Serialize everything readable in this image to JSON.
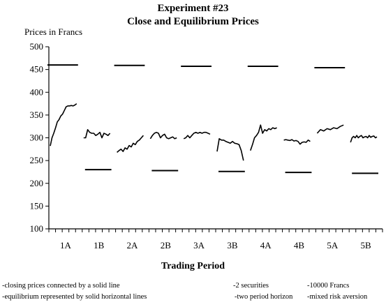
{
  "chart_data": {
    "type": "line",
    "title": "Experiment #23",
    "subtitle": "Close and Equilibrium Prices",
    "ylabel": "Prices in Francs",
    "xlabel": "Trading Period",
    "ylim": [
      100,
      500
    ],
    "yticks": [
      100,
      150,
      200,
      250,
      300,
      350,
      400,
      450,
      500
    ],
    "categories": [
      "1A",
      "1B",
      "2A",
      "2B",
      "3A",
      "3B",
      "4A",
      "4B",
      "5A",
      "5B"
    ],
    "closing_prices": [
      [
        282,
        300,
        310,
        322,
        335,
        340,
        348,
        352,
        360,
        368,
        370,
        370,
        371,
        370,
        372,
        375
      ],
      [
        300,
        300,
        318,
        312,
        310,
        310,
        305,
        308,
        312,
        300,
        310,
        308,
        305,
        310
      ],
      [
        268,
        272,
        275,
        270,
        278,
        275,
        283,
        280,
        288,
        285,
        292,
        295,
        300,
        305
      ],
      [
        298,
        305,
        310,
        312,
        310,
        300,
        305,
        308,
        300,
        298,
        300,
        302,
        298,
        300
      ],
      [
        298,
        300,
        305,
        300,
        305,
        310,
        312,
        310,
        312,
        310,
        312,
        312,
        310,
        308
      ],
      [
        270,
        298,
        295,
        295,
        292,
        290,
        288,
        292,
        288,
        287,
        285,
        272,
        250
      ],
      [
        272,
        285,
        300,
        305,
        312,
        328,
        310,
        318,
        315,
        320,
        318,
        322,
        320,
        322
      ],
      [
        295,
        296,
        295,
        294,
        296,
        293,
        294,
        292,
        286,
        290,
        291,
        290,
        295,
        292
      ],
      [
        310,
        318,
        315,
        320,
        318,
        322,
        320,
        325,
        328
      ],
      [
        290,
        300,
        303,
        300,
        305,
        300,
        303,
        305,
        300,
        302,
        303,
        300,
        305,
        301,
        303,
        304,
        300,
        302
      ]
    ],
    "equilibrium": [
      {
        "period": "1A",
        "high": 460
      },
      {
        "period": "1B",
        "low": 230
      },
      {
        "period": "2A",
        "high": 459
      },
      {
        "period": "2B",
        "low": 228
      },
      {
        "period": "3A",
        "high": 457
      },
      {
        "period": "3B",
        "low": 226
      },
      {
        "period": "4A",
        "high": 457
      },
      {
        "period": "4B",
        "low": 224
      },
      {
        "period": "5A",
        "high": 454
      },
      {
        "period": "5B",
        "low": 222
      }
    ],
    "grid": false
  },
  "notes": {
    "left_1": "-closing prices connected by a solid line",
    "left_2": "-equilibrium represented by solid horizontal lines",
    "mid_1": "-2 securities",
    "mid_2": "-two period horizon",
    "right_1": "-10000 Francs",
    "right_2": "-mixed risk aversion"
  }
}
